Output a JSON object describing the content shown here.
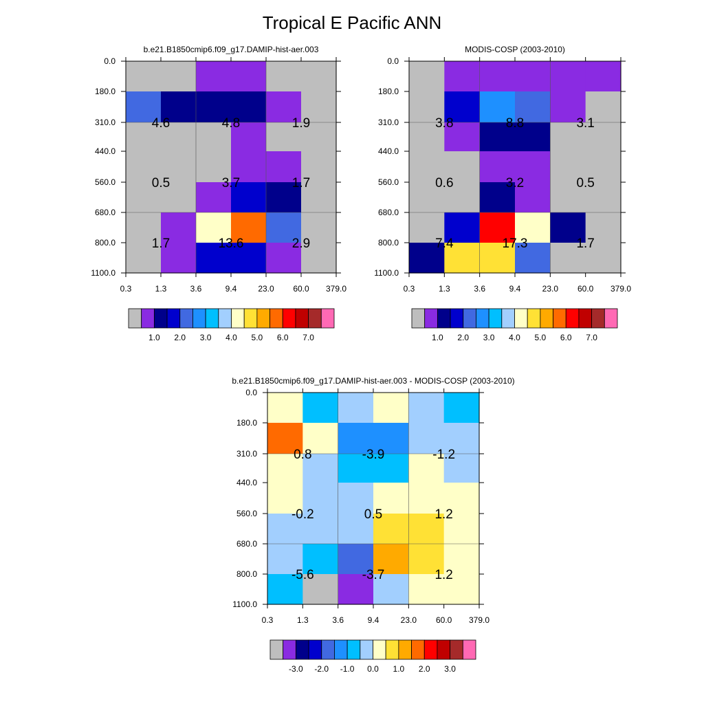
{
  "title": "Tropical E Pacific ANN",
  "palette": {
    "abs": [
      "#bebebe",
      "#8a2be2",
      "#00008b",
      "#0000cd",
      "#4169e1",
      "#1e90ff",
      "#00bfff",
      "#a2cffe",
      "#ffffc8",
      "#ffe135",
      "#ffaa00",
      "#ff6a00",
      "#ff0000",
      "#c00000",
      "#a52a2a",
      "#ff69b4"
    ],
    "diff": [
      "#bebebe",
      "#8a2be2",
      "#00008b",
      "#0000cd",
      "#4169e1",
      "#1e90ff",
      "#00bfff",
      "#a2cffe",
      "#ffffc8",
      "#ffe135",
      "#ffaa00",
      "#ff6a00",
      "#ff0000",
      "#c00000",
      "#a52a2a",
      "#ff69b4"
    ]
  },
  "chart_data": [
    {
      "type": "heatmap",
      "title": "b.e21.B1850cmip6.f09_g17.DAMIP-hist-aer.003",
      "x_ticks": [
        "0.3",
        "1.3",
        "3.6",
        "9.4",
        "23.0",
        "60.0",
        "379.0"
      ],
      "y_ticks": [
        "0.0",
        "180.0",
        "310.0",
        "440.0",
        "560.0",
        "680.0",
        "800.0",
        "1100.0"
      ],
      "cells": [
        [
          0,
          0,
          1,
          1,
          0,
          0
        ],
        [
          4,
          2,
          2,
          2,
          1,
          0
        ],
        [
          0,
          0,
          0,
          1,
          0,
          0
        ],
        [
          0,
          0,
          0,
          1,
          1,
          0
        ],
        [
          0,
          0,
          1,
          3,
          2,
          0
        ],
        [
          0,
          1,
          8,
          11,
          4,
          0
        ],
        [
          0,
          1,
          3,
          3,
          1,
          0
        ]
      ],
      "labels": [
        {
          "text": "4.6",
          "col": 1,
          "row": 1
        },
        {
          "text": "4.8",
          "col": 3,
          "row": 1
        },
        {
          "text": "1.9",
          "col": 5,
          "row": 1
        },
        {
          "text": "0.5",
          "col": 1,
          "row": 3
        },
        {
          "text": "3.7",
          "col": 3,
          "row": 3
        },
        {
          "text": "1.7",
          "col": 5,
          "row": 3
        },
        {
          "text": "1.7",
          "col": 1,
          "row": 5
        },
        {
          "text": "13.6",
          "col": 3,
          "row": 5
        },
        {
          "text": "2.9",
          "col": 5,
          "row": 5
        }
      ],
      "colorbar_labels": [
        "1.0",
        "2.0",
        "3.0",
        "4.0",
        "5.0",
        "6.0",
        "7.0"
      ]
    },
    {
      "type": "heatmap",
      "title": "MODIS-COSP (2003-2010)",
      "x_ticks": [
        "0.3",
        "1.3",
        "3.6",
        "9.4",
        "23.0",
        "60.0",
        "379.0"
      ],
      "y_ticks": [
        "0.0",
        "180.0",
        "310.0",
        "440.0",
        "560.0",
        "680.0",
        "800.0",
        "1100.0"
      ],
      "cells": [
        [
          0,
          1,
          1,
          1,
          1,
          1
        ],
        [
          0,
          3,
          5,
          4,
          1,
          0
        ],
        [
          0,
          1,
          2,
          2,
          0,
          0
        ],
        [
          0,
          0,
          1,
          1,
          0,
          0
        ],
        [
          0,
          0,
          2,
          1,
          0,
          0
        ],
        [
          0,
          3,
          12,
          8,
          2,
          0
        ],
        [
          2,
          9,
          9,
          4,
          0,
          0
        ]
      ],
      "labels": [
        {
          "text": "3.8",
          "col": 1,
          "row": 1
        },
        {
          "text": "8.8",
          "col": 3,
          "row": 1
        },
        {
          "text": "3.1",
          "col": 5,
          "row": 1
        },
        {
          "text": "0.6",
          "col": 1,
          "row": 3
        },
        {
          "text": "3.2",
          "col": 3,
          "row": 3
        },
        {
          "text": "0.5",
          "col": 5,
          "row": 3
        },
        {
          "text": "7.4",
          "col": 1,
          "row": 5
        },
        {
          "text": "17.3",
          "col": 3,
          "row": 5
        },
        {
          "text": "1.7",
          "col": 5,
          "row": 5
        }
      ],
      "colorbar_labels": [
        "1.0",
        "2.0",
        "3.0",
        "4.0",
        "5.0",
        "6.0",
        "7.0"
      ]
    },
    {
      "type": "heatmap",
      "title": "b.e21.B1850cmip6.f09_g17.DAMIP-hist-aer.003 - MODIS-COSP (2003-2010)",
      "x_ticks": [
        "0.3",
        "1.3",
        "3.6",
        "9.4",
        "23.0",
        "60.0",
        "379.0"
      ],
      "y_ticks": [
        "0.0",
        "180.0",
        "310.0",
        "440.0",
        "560.0",
        "680.0",
        "800.0",
        "1100.0"
      ],
      "cells": [
        [
          8,
          6,
          7,
          8,
          7,
          6
        ],
        [
          11,
          8,
          5,
          5,
          7,
          7
        ],
        [
          8,
          7,
          6,
          6,
          8,
          7
        ],
        [
          8,
          7,
          7,
          8,
          8,
          8
        ],
        [
          7,
          7,
          7,
          9,
          9,
          8
        ],
        [
          7,
          6,
          4,
          10,
          9,
          8
        ],
        [
          6,
          0,
          1,
          7,
          8,
          8
        ]
      ],
      "labels": [
        {
          "text": "0.8",
          "col": 1,
          "row": 1
        },
        {
          "text": "-3.9",
          "col": 3,
          "row": 1
        },
        {
          "text": "-1.2",
          "col": 5,
          "row": 1
        },
        {
          "text": "-0.2",
          "col": 1,
          "row": 3
        },
        {
          "text": "0.5",
          "col": 3,
          "row": 3
        },
        {
          "text": "1.2",
          "col": 5,
          "row": 3
        },
        {
          "text": "-5.6",
          "col": 1,
          "row": 5
        },
        {
          "text": "-3.7",
          "col": 3,
          "row": 5
        },
        {
          "text": "1.2",
          "col": 5,
          "row": 5
        }
      ],
      "colorbar_labels": [
        "-3.0",
        "-2.0",
        "-1.0",
        "0.0",
        "1.0",
        "2.0",
        "3.0"
      ]
    }
  ]
}
